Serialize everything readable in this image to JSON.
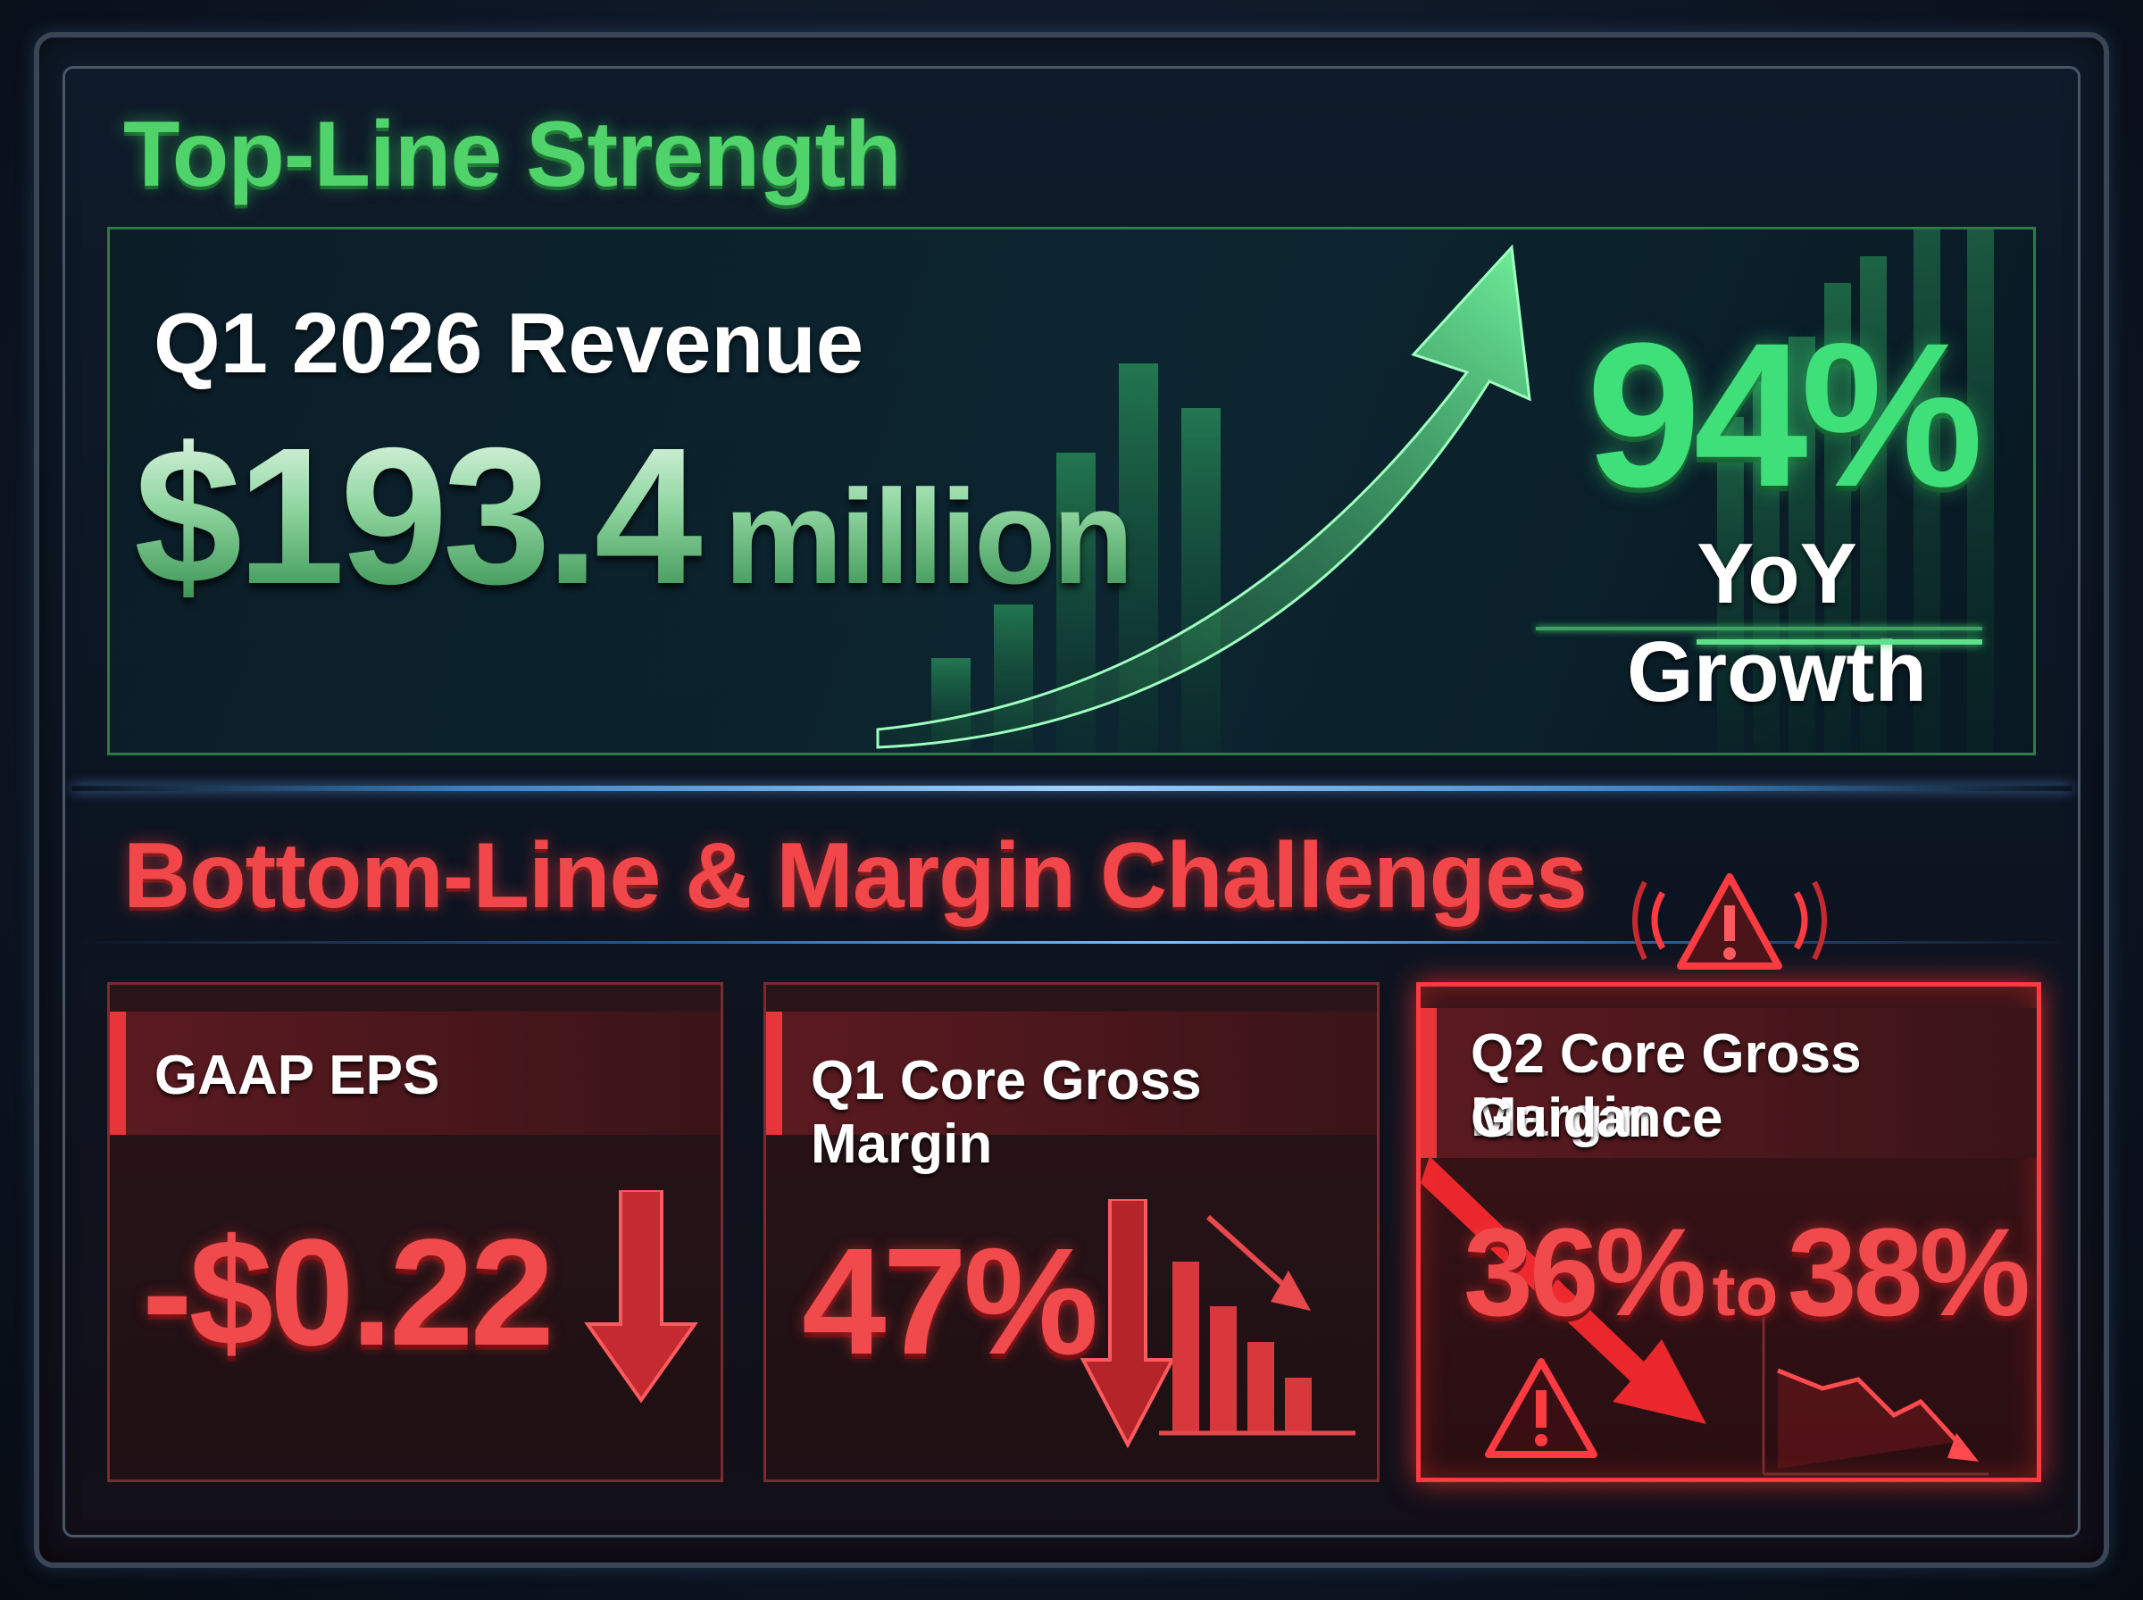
{
  "top_section": {
    "heading": "Top-Line Strength",
    "revenue_label": "Q1 2026 Revenue",
    "revenue_value": "$193.4",
    "revenue_unit": "million",
    "growth_value": "94%",
    "growth_label": "YoY Growth"
  },
  "bottom_section": {
    "heading": "Bottom-Line & Margin Challenges",
    "cards": [
      {
        "title": "GAAP EPS",
        "value": "-$0.22"
      },
      {
        "title": "Q1 Core Gross Margin",
        "value": "47%"
      },
      {
        "title_line1": "Q2 Core Gross Margin",
        "title_line2": "Guidance",
        "value_low": "36%",
        "connector": "to",
        "value_high": "38%"
      }
    ]
  },
  "colors": {
    "positive": "#3fe07a",
    "negative": "#f04a4c",
    "frame": "#3a4556"
  },
  "icons": [
    "trend-up-arrow-icon",
    "down-arrow-icon",
    "declining-bars-icon",
    "warning-icon",
    "alarm-warning-icon",
    "declining-line-icon"
  ]
}
